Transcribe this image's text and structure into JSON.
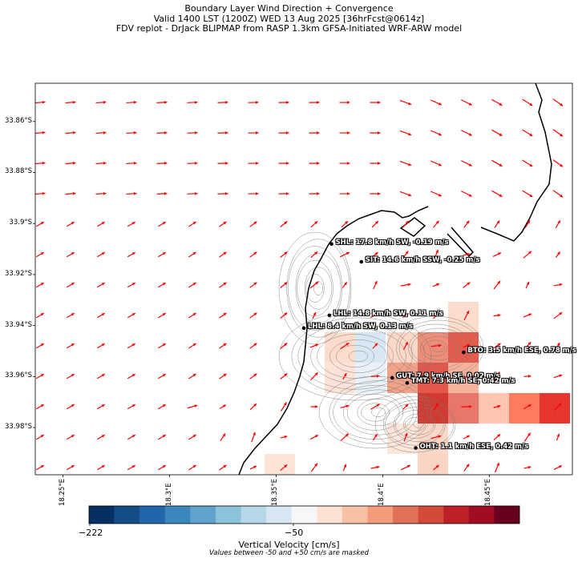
{
  "title": {
    "line1": "Boundary Layer Wind Direction + Convergence",
    "line2": "Valid 1400 LST (1200Z) WED 13 Aug 2025 [36hrFcst@0614z]",
    "line3": "FDV replot - DrJack BLIPMAP from RASP 1.3km GFSA-Initiated WRF-ARW model"
  },
  "axes": {
    "lat_ticks": [
      "33.86°S",
      "33.88°S",
      "33.9°S",
      "33.92°S",
      "33.94°S",
      "33.96°S",
      "33.98°S"
    ],
    "lon_ticks": [
      "18.25°E",
      "18.3°E",
      "18.35°E",
      "18.4°E",
      "18.45°E"
    ],
    "lat_range": [
      -33.9985,
      -33.845
    ],
    "lon_range": [
      18.237,
      18.489
    ]
  },
  "stations": [
    {
      "id": "SHL",
      "label": "SHL: 17.8 km/h SW, -0.19 m/s",
      "lon": 18.376,
      "lat": -33.908
    },
    {
      "id": "SIT",
      "label": "SIT: 14.6 km/h SSW, -0.25 m/s",
      "lon": 18.39,
      "lat": -33.915
    },
    {
      "id": "LHL1",
      "label": "LHL: 14.8 km/h SW, 0.11 m/s",
      "lon": 18.375,
      "lat": -33.936
    },
    {
      "id": "LHL2",
      "label": "LHL: 8.4 km/h SW, 0.13 m/s",
      "lon": 18.363,
      "lat": -33.941
    },
    {
      "id": "BTO",
      "label": "BTO: 3.5 km/h ESE, 0.78 m/s",
      "lon": 18.438,
      "lat": -33.9505
    },
    {
      "id": "GUT",
      "label": "GUT: 7.9 km/h SE, 0.02 m/s",
      "lon": 18.4045,
      "lat": -33.9605
    },
    {
      "id": "TMT",
      "label": "TMT: 7.3 km/h SE, 0.42 m/s",
      "lon": 18.4115,
      "lat": -33.9625
    },
    {
      "id": "OHT",
      "label": "OHT: 1.1 km/h ESE, 0.42 m/s",
      "lon": 18.4155,
      "lat": -33.988
    }
  ],
  "colorbar": {
    "label": "Vertical Velocity [cm/s]",
    "ticks": [
      "−222",
      "−50"
    ],
    "note": "Values between -50 and +50 cm/s are masked",
    "colors": [
      "#053061",
      "#134c87",
      "#2166ac",
      "#3a87bd",
      "#5fa2cb",
      "#8dc2dc",
      "#b5d7e8",
      "#d6e7f1",
      "#f7f7f7",
      "#fde1d2",
      "#f8c0a4",
      "#f39b7b",
      "#e27159",
      "#d44a3a",
      "#bd2127",
      "#a00d22",
      "#67001f"
    ]
  },
  "colors": {
    "wind_arrow": "#ff0000",
    "coastline": "#000000",
    "terrain_contour": "#7a7a7a"
  }
}
